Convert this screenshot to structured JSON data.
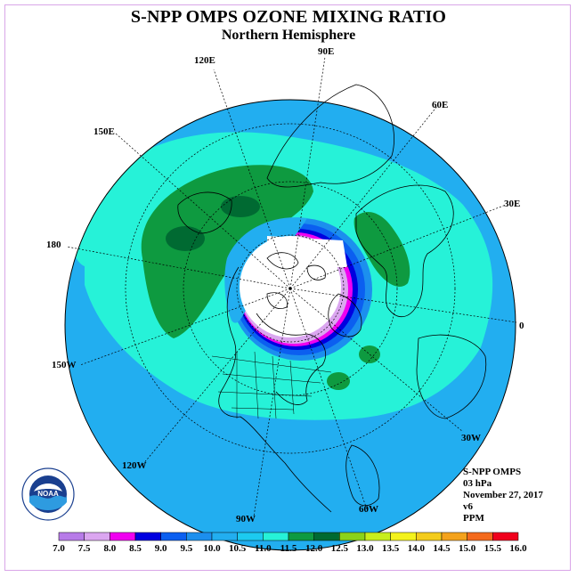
{
  "header": {
    "title": "S-NPP OMPS OZONE MIXING RATIO",
    "subtitle": "Northern Hemisphere"
  },
  "longitude_labels": [
    {
      "id": "lon-90e",
      "text": "90E"
    },
    {
      "id": "lon-60e",
      "text": "60E"
    },
    {
      "id": "lon-30e",
      "text": "30E"
    },
    {
      "id": "lon-0",
      "text": "0"
    },
    {
      "id": "lon-30w",
      "text": "30W"
    },
    {
      "id": "lon-60w",
      "text": "60W"
    },
    {
      "id": "lon-90w",
      "text": "90W"
    },
    {
      "id": "lon-120w",
      "text": "120W"
    },
    {
      "id": "lon-150w",
      "text": "150W"
    },
    {
      "id": "lon-180",
      "text": "180"
    },
    {
      "id": "lon-150e",
      "text": "150E"
    },
    {
      "id": "lon-120e",
      "text": "120E"
    }
  ],
  "info": {
    "instrument": "S-NPP OMPS",
    "level": "03 hPa",
    "date": "November 27, 2017",
    "version": "v6",
    "units": "PPM"
  },
  "logo": {
    "text": "NOAA",
    "ring_text": "NATIONAL OCEANIC AND ATMOSPHERIC ADMINISTRATION • U.S. DEPARTMENT OF COMMERCE"
  },
  "colorbar": {
    "ticks": [
      "7.0",
      "7.5",
      "8.0",
      "8.5",
      "9.0",
      "9.5",
      "10.0",
      "10.5",
      "11.0",
      "11.5",
      "12.0",
      "12.5",
      "13.0",
      "13.5",
      "14.0",
      "14.5",
      "15.0",
      "15.5",
      "16.0"
    ],
    "colors": [
      "#b77be8",
      "#dba6f0",
      "#f000f0",
      "#0000e0",
      "#0b5ff0",
      "#1c8fee",
      "#22aef0",
      "#1ccaf0",
      "#26f2d8",
      "#0e9a40",
      "#006a32",
      "#8bd21a",
      "#c8ee1c",
      "#f4f21c",
      "#f4cc1c",
      "#f4a21c",
      "#f46a1c",
      "#f0001c",
      "#8a4a2a"
    ],
    "units": "PPM"
  }
}
